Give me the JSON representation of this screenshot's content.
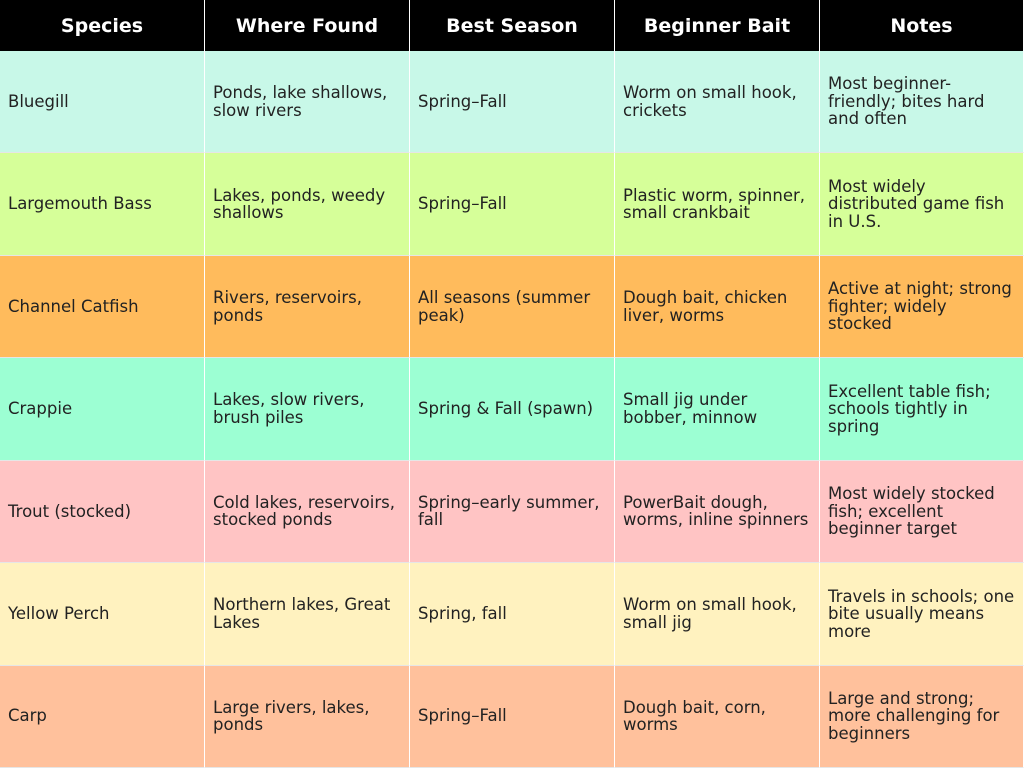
{
  "headers": [
    "Species",
    "Where Found",
    "Best Season",
    "Beginner Bait",
    "Notes"
  ],
  "rows": [
    {
      "color": "#c8f8e8",
      "cells": [
        "Bluegill",
        "Ponds, lake shallows, slow rivers",
        "Spring–Fall",
        "Worm on small hook, crickets",
        "Most beginner-friendly; bites hard and often"
      ]
    },
    {
      "color": "#d6ff99",
      "cells": [
        "Largemouth Bass",
        "Lakes, ponds, weedy shallows",
        "Spring–Fall",
        "Plastic worm, spinner, small crankbait",
        "Most widely distributed game fish in U.S."
      ]
    },
    {
      "color": "#ffbb5c",
      "cells": [
        "Channel Catfish",
        "Rivers, reservoirs, ponds",
        "All seasons (summer peak)",
        "Dough bait, chicken liver, worms",
        "Active at night; strong fighter; widely stocked"
      ]
    },
    {
      "color": "#9cffd3",
      "cells": [
        "Crappie",
        "Lakes, slow rivers, brush piles",
        "Spring & Fall (spawn)",
        "Small jig under bobber, minnow",
        "Excellent table fish; schools tightly in spring"
      ]
    },
    {
      "color": "#ffc4c4",
      "cells": [
        "Trout (stocked)",
        "Cold lakes, reservoirs, stocked ponds",
        "Spring–early summer, fall",
        "PowerBait dough, worms, inline spinners",
        "Most widely stocked fish; excellent beginner target"
      ]
    },
    {
      "color": "#fff2bf",
      "cells": [
        "Yellow Perch",
        "Northern lakes, Great Lakes",
        "Spring, fall",
        "Worm on small hook, small jig",
        "Travels in schools; one bite usually means more"
      ]
    },
    {
      "color": "#ffc19c",
      "cells": [
        "Carp",
        "Large rivers, lakes, ponds",
        "Spring–Fall",
        "Dough bait, corn, worms",
        "Large and strong; more challenging for beginners"
      ]
    }
  ]
}
